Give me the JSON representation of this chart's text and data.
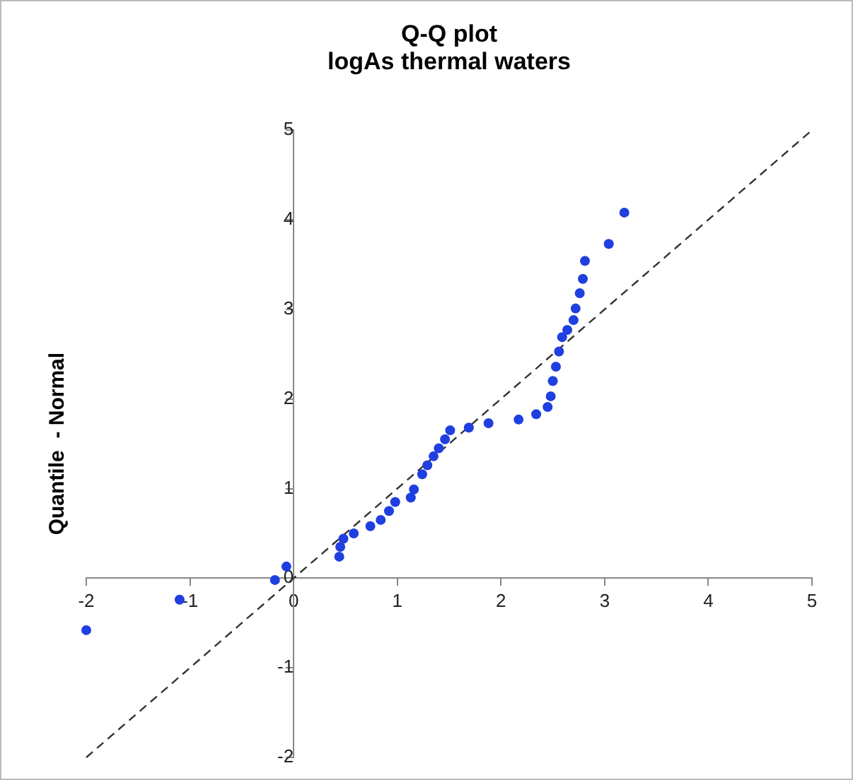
{
  "chart_data": {
    "type": "scatter",
    "title": "Q-Q plot",
    "subtitle": "logAs thermal waters",
    "ylabel": "Quantile  - Normal",
    "xlim": [
      -2,
      5
    ],
    "ylim": [
      -2,
      5
    ],
    "xticks": [
      -2,
      -1,
      0,
      1,
      2,
      3,
      4,
      5
    ],
    "yticks": [
      -2,
      -1,
      0,
      1,
      2,
      3,
      4,
      5
    ],
    "grid": false,
    "legend": false,
    "marker": "circle",
    "series": [
      {
        "color": "#1f3fe0",
        "x": [
          -2.0,
          -1.1,
          -0.18,
          -0.07,
          0.44,
          0.45,
          0.48,
          0.58,
          0.74,
          0.84,
          0.92,
          0.98,
          1.13,
          1.16,
          1.24,
          1.29,
          1.35,
          1.4,
          1.46,
          1.51,
          1.69,
          1.88,
          2.17,
          2.34,
          2.45,
          2.48,
          2.5,
          2.53,
          2.56,
          2.59,
          2.64,
          2.7,
          2.72,
          2.76,
          2.79,
          2.81,
          3.04,
          3.19
        ],
        "values": [
          -0.58,
          -0.24,
          -0.02,
          0.13,
          0.24,
          0.35,
          0.44,
          0.5,
          0.58,
          0.65,
          0.75,
          0.85,
          0.9,
          0.99,
          1.16,
          1.26,
          1.36,
          1.45,
          1.55,
          1.65,
          1.68,
          1.73,
          1.77,
          1.83,
          1.91,
          2.03,
          2.2,
          2.36,
          2.53,
          2.69,
          2.77,
          2.88,
          3.01,
          3.18,
          3.34,
          3.54,
          3.73,
          4.08
        ]
      },
      {
        "type": "line",
        "color": "#333333",
        "line_style": "dashed",
        "marker": "none",
        "x": [
          -2,
          5
        ],
        "values": [
          -2,
          5
        ]
      }
    ]
  }
}
